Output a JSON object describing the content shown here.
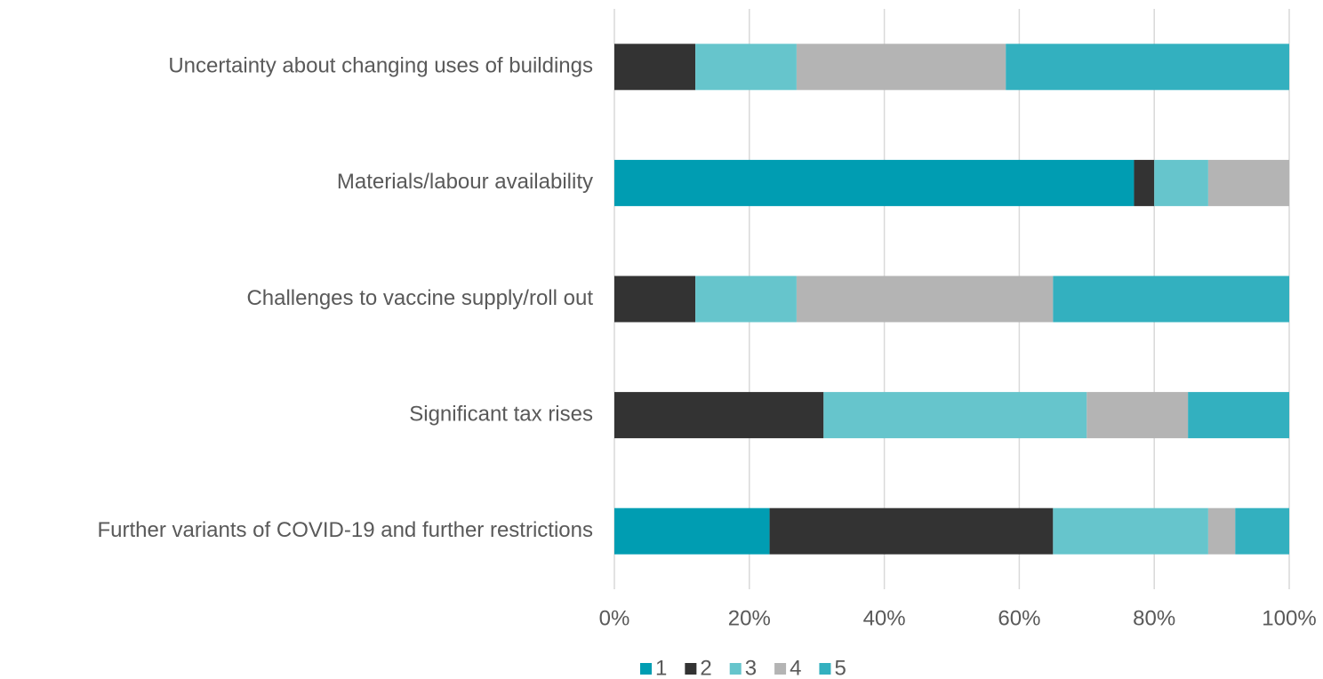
{
  "chart_data": {
    "type": "stacked_barh",
    "categories": [
      "Uncertainty about changing uses of buildings",
      "Materials/labour availability",
      "Challenges to vaccine supply/roll out",
      "Significant tax rises",
      "Further variants of COVID-19 and further restrictions"
    ],
    "series": [
      {
        "name": "1",
        "color": "#009db2",
        "values": [
          0,
          77,
          0,
          0,
          23
        ]
      },
      {
        "name": "2",
        "color": "#333333",
        "values": [
          12,
          3,
          12,
          31,
          42
        ]
      },
      {
        "name": "3",
        "color": "#66c5cc",
        "values": [
          15,
          8,
          15,
          39,
          23
        ]
      },
      {
        "name": "4",
        "color": "#b4b4b4",
        "values": [
          31,
          12,
          38,
          15,
          4
        ]
      },
      {
        "name": "5",
        "color": "#33b0bf",
        "values": [
          42,
          0,
          35,
          15,
          8
        ]
      }
    ],
    "xlim": [
      0,
      100
    ],
    "xticks": [
      {
        "value": 0,
        "label": "0%"
      },
      {
        "value": 20,
        "label": "20%"
      },
      {
        "value": 40,
        "label": "40%"
      },
      {
        "value": 60,
        "label": "60%"
      },
      {
        "value": 80,
        "label": "80%"
      },
      {
        "value": 100,
        "label": "100%"
      }
    ],
    "grid": true,
    "legend": "bottom"
  }
}
